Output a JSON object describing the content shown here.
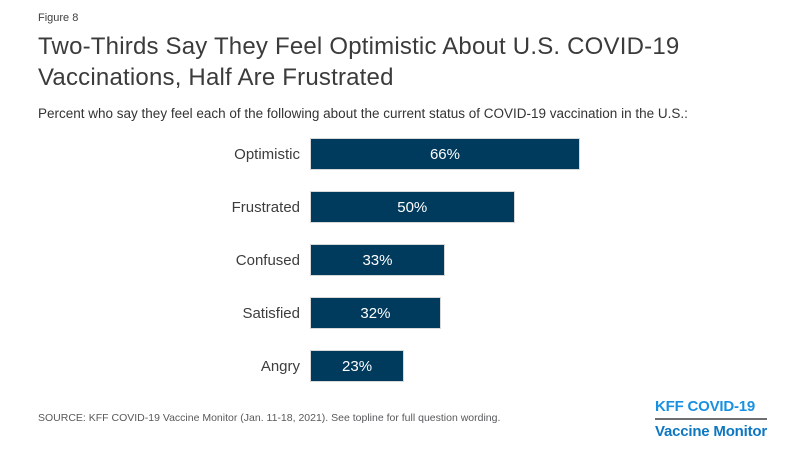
{
  "figure_label": "Figure 8",
  "title": "Two-Thirds Say They Feel Optimistic About U.S. COVID-19 Vaccinations, Half Are Frustrated",
  "subtitle": "Percent who say they feel each of the following about the current status of COVID-19 vaccination in the U.S.:",
  "source": "SOURCE: KFF COVID-19 Vaccine Monitor (Jan. 11-18, 2021). See topline for full question wording.",
  "logo": {
    "line1": "KFF COVID-19",
    "line2": "Vaccine Monitor"
  },
  "colors": {
    "bar": "#003a5d",
    "title_text": "#3b3b3b",
    "value_label": "#ffffff",
    "logo_top": "#1a91e0",
    "logo_bottom": "#0d77c0",
    "logo_divider": "#6d6e71",
    "source_text": "#58595b"
  },
  "chart_data": {
    "type": "bar",
    "orientation": "horizontal",
    "title": "Two-Thirds Say They Feel Optimistic About U.S. COVID-19 Vaccinations, Half Are Frustrated",
    "subtitle": "Percent who say they feel each of the following about the current status of COVID-19 vaccination in the U.S.:",
    "categories": [
      "Optimistic",
      "Frustrated",
      "Confused",
      "Satisfied",
      "Angry"
    ],
    "values": [
      66,
      50,
      33,
      32,
      23
    ],
    "value_labels": [
      "66%",
      "50%",
      "33%",
      "32%",
      "23%"
    ],
    "xlim": [
      0,
      100
    ],
    "grid": false,
    "legend": false,
    "bar_color": "#003a5d",
    "value_label_position": "inside-center"
  }
}
